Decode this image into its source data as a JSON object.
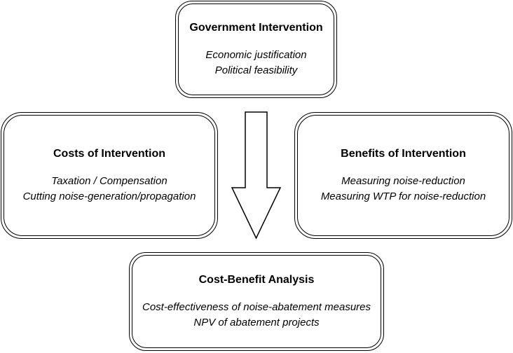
{
  "government": {
    "title": "Government Intervention",
    "lines": [
      "Economic justification",
      "Political feasibility"
    ]
  },
  "costs": {
    "title": "Costs of Intervention",
    "lines": [
      "Taxation / Compensation",
      "Cutting noise-generation/propagation"
    ]
  },
  "benefits": {
    "title": "Benefits of Intervention",
    "lines": [
      "Measuring noise-reduction",
      "Measuring WTP for noise-reduction"
    ]
  },
  "cba": {
    "title": "Cost-Benefit Analysis",
    "lines": [
      "Cost-effectiveness of noise-abatement measures",
      "NPV of abatement projects"
    ]
  },
  "arrow_icon": "down-arrow-icon"
}
